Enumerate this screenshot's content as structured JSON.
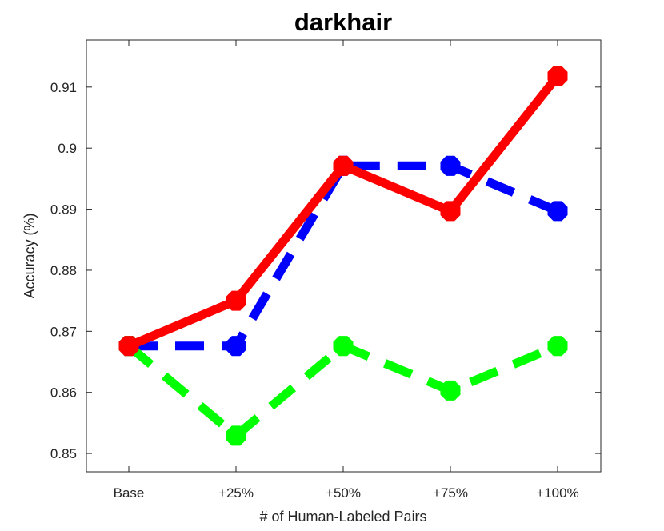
{
  "chart_data": {
    "type": "line",
    "title": "darkhair",
    "xlabel": "# of Human-Labeled Pairs",
    "ylabel": "Accuracy (%)",
    "categories": [
      "Base",
      "+25%",
      "+50%",
      "+75%",
      "+100%"
    ],
    "ylim": [
      0.847,
      0.9177
    ],
    "yticks": [
      0.85,
      0.86,
      0.87,
      0.88,
      0.89,
      0.9,
      0.91
    ],
    "ytick_labels": [
      "0.85",
      "0.86",
      "0.87",
      "0.88",
      "0.89",
      "0.9",
      "0.91"
    ],
    "grid": false,
    "series": [
      {
        "values": [
          0.8676,
          0.8676,
          0.8971,
          0.8971,
          0.8897
        ],
        "color": "#0000ff",
        "style": "dashed"
      },
      {
        "values": [
          0.8676,
          0.8529,
          0.8676,
          0.8603,
          0.8676
        ],
        "color": "#00ff00",
        "style": "dashed"
      },
      {
        "values": [
          0.8676,
          0.875,
          0.8971,
          0.8897,
          0.9118
        ],
        "color": "#ff0000",
        "style": "solid"
      }
    ]
  }
}
